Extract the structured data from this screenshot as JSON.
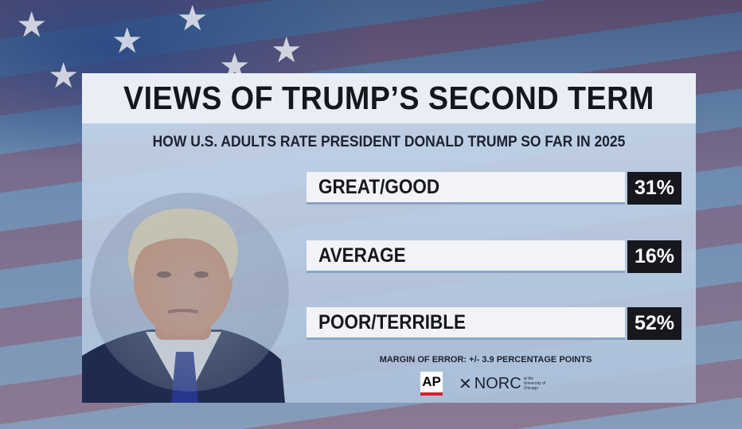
{
  "chart_data": {
    "type": "bar",
    "title": "VIEWS OF TRUMP’S SECOND TERM",
    "subtitle": "HOW U.S. ADULTS RATE PRESIDENT DONALD TRUMP SO FAR IN 2025",
    "categories": [
      "GREAT/GOOD",
      "AVERAGE",
      "POOR/TERRIBLE"
    ],
    "values": [
      31,
      16,
      52
    ],
    "value_labels": [
      "31%",
      "16%",
      "52%"
    ],
    "note": "MARGIN OF ERROR: +/- 3.9 PERCENTAGE POINTS",
    "sources": {
      "ap": "AP",
      "norc": "NORC",
      "norc_sub": "at the University of Chicago"
    }
  },
  "colors": {
    "value_box": "#16181d",
    "label_box": "#f1f3f6",
    "ap_red": "#d3202c"
  },
  "icons": {
    "norc": "asterisk-icon"
  }
}
